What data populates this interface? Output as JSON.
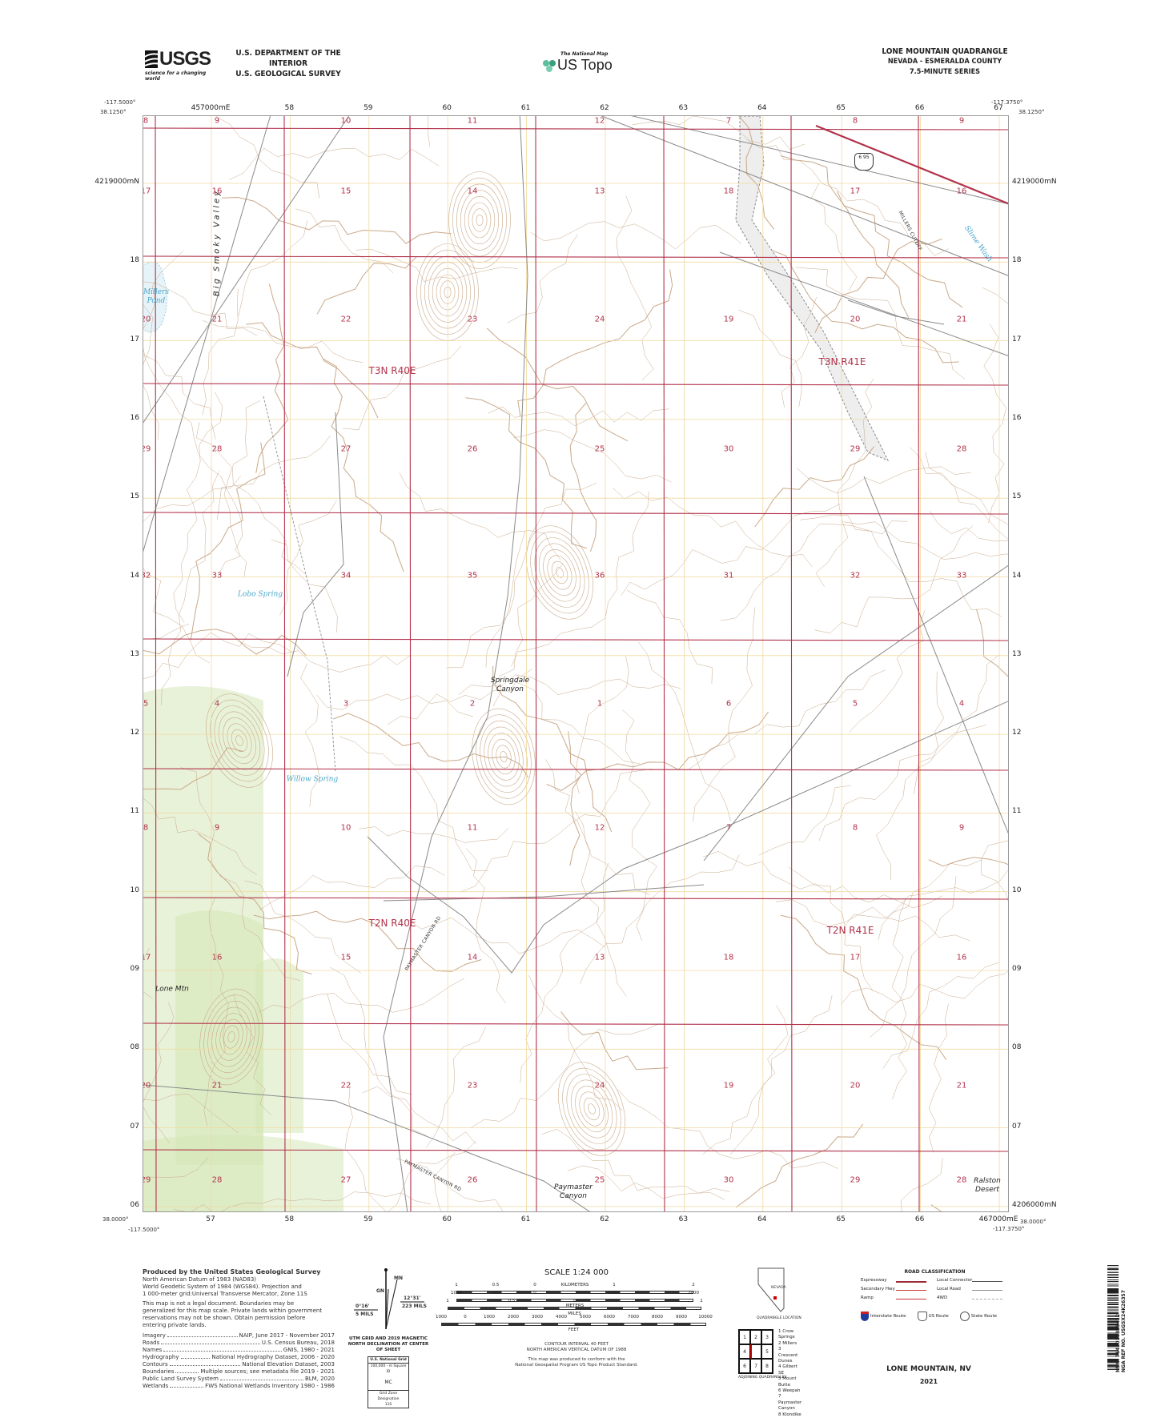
{
  "header": {
    "usgs_logo": "USGS",
    "usgs_tagline": "science for a changing world",
    "department": "U.S. DEPARTMENT OF THE INTERIOR",
    "survey": "U.S. GEOLOGICAL SURVEY",
    "national_map": "The National Map",
    "us_topo": "US Topo",
    "quad_title": "LONE MOUNTAIN QUADRANGLE",
    "state_county": "NEVADA - ESMERALDA COUNTY",
    "series": "7.5-MINUTE SERIES"
  },
  "corners": {
    "west_lon": "-117.5000°",
    "east_lon": "-117.3750°",
    "north_lat": "38.1250°",
    "south_lat": "38.0000°"
  },
  "grid": {
    "eastings": [
      "457000mE",
      "58",
      "59",
      "60",
      "61",
      "62",
      "63",
      "64",
      "65",
      "66",
      "67"
    ],
    "eastings_bottom": [
      "57",
      "58",
      "59",
      "60",
      "61",
      "62",
      "63",
      "64",
      "65",
      "66",
      "467000mE"
    ],
    "northings": [
      "4219000mN",
      "18",
      "17",
      "16",
      "15",
      "14",
      "13",
      "12",
      "11",
      "10",
      "09",
      "08",
      "07",
      "4206000mN"
    ],
    "northings_left": [
      "19",
      "18",
      "17",
      "16",
      "15",
      "14",
      "13",
      "12",
      "11",
      "10",
      "09",
      "08",
      "07",
      "06"
    ]
  },
  "sections": [
    [
      "8",
      "9",
      "10",
      "11",
      "12",
      "7",
      "8",
      "9"
    ],
    [
      "17",
      "16",
      "15",
      "14",
      "13",
      "18",
      "17",
      "16"
    ],
    [
      "20",
      "21",
      "22",
      "23",
      "24",
      "19",
      "20",
      "21"
    ],
    [
      "29",
      "28",
      "27",
      "26",
      "25",
      "30",
      "29",
      "28"
    ],
    [
      "32",
      "33",
      "34",
      "35",
      "36",
      "31",
      "32",
      "33"
    ],
    [
      "5",
      "4",
      "3",
      "2",
      "1",
      "6",
      "5",
      "4"
    ],
    [
      "8",
      "9",
      "10",
      "11",
      "12",
      "7",
      "8",
      "9"
    ],
    [
      "17",
      "16",
      "15",
      "14",
      "13",
      "18",
      "17",
      "16"
    ],
    [
      "20",
      "21",
      "22",
      "23",
      "24",
      "19",
      "20",
      "21"
    ],
    [
      "29",
      "28",
      "27",
      "26",
      "25",
      "30",
      "29",
      "28"
    ]
  ],
  "townships": [
    "T3N R40E",
    "T3N R41E",
    "T2N R40E",
    "T2N R41E"
  ],
  "places": {
    "millers_pond": "Millers Pond",
    "big_smoky_valley": "Big Smoky Valley",
    "lobo_spring": "Lobo Spring",
    "willow_spring": "Willow Spring",
    "springdale_canyon": "Springdale Canyon",
    "lone_mtn": "Lone Mtn",
    "paymaster_canyon": "Paymaster Canyon",
    "ralston_desert": "Ralston Desert",
    "slime_wash": "Slime Wash"
  },
  "roads": {
    "millers_cutoff": "MILLERS CUTOFF",
    "paymaster_rd": "PAYMASTER CANYON RD",
    "us_route_shield": "6 95"
  },
  "colors": {
    "section_line": "#b2324b",
    "utm_grid": "#f0d9a0",
    "contour": "#c9a98a",
    "vegetation": "#d5e7b8",
    "road": "#8a8a8a",
    "water": "#4aa6c8",
    "expressway": "#b2324b"
  },
  "footer": {
    "produced_by": "Produced by the United States Geological Survey",
    "datum_lines": [
      "North American Datum of 1983 (NAD83)",
      "World Geodetic System of 1984 (WGS84).  Projection and",
      "1 000-meter grid:Universal Transverse Mercator, Zone 11S"
    ],
    "disclaimer": [
      "This map is not a legal document. Boundaries may be",
      "generalized for this map scale. Private lands within government",
      "reservations may not be shown. Obtain permission before",
      "entering private lands."
    ],
    "sources": [
      [
        "Imagery",
        "NAIP, June 2017 - November 2017"
      ],
      [
        "Roads",
        "U.S. Census Bureau, 2018"
      ],
      [
        "Names",
        "GNIS, 1980 - 2021"
      ],
      [
        "Hydrography",
        "National Hydrography Dataset, 2006 - 2020"
      ],
      [
        "Contours",
        "National Elevation Dataset, 2003"
      ],
      [
        "Boundaries",
        "Multiple sources; see metadata file 2019 - 2021"
      ],
      [
        "Public Land Survey System",
        "BLM, 2020"
      ],
      [
        "Wetlands",
        "FWS National Wetlands Inventory 1980 - 1986"
      ]
    ],
    "declination": {
      "mn": "MN",
      "gn": "GN",
      "grid_angle": "0°16'",
      "grid_mils": "5 MILS",
      "mag_angle": "12°31'",
      "mag_mils": "223 MILS",
      "caption": "UTM GRID AND 2019 MAGNETIC NORTH DECLINATION AT CENTER OF SHEET"
    },
    "national_grid": {
      "title": "U.S. National Grid",
      "square_label": "100,000 - m Square ID",
      "square_id": "MC",
      "zone_label": "Grid Zone Designation",
      "zone": "11S"
    },
    "scale": {
      "title": "SCALE 1:24 000",
      "km_ticks": [
        "1",
        "0.5",
        "0",
        "1",
        "2"
      ],
      "km_label": "KILOMETERS",
      "m_ticks": [
        "1000",
        "500",
        "0",
        "1000",
        "2000"
      ],
      "m_label": "METERS",
      "mi_ticks": [
        "1",
        "0.5",
        "0",
        "1"
      ],
      "mi_label": "MILES",
      "ft_ticks": [
        "1000",
        "0",
        "1000",
        "2000",
        "3000",
        "4000",
        "5000",
        "6000",
        "7000",
        "8000",
        "9000",
        "10000"
      ],
      "ft_label": "FEET"
    },
    "contour_interval": "CONTOUR INTERVAL 40 FEET",
    "vertical_datum": "NORTH AMERICAN VERTICAL DATUM OF 1988",
    "standard": [
      "This map was produced to conform with the",
      "National Geospatial Program US Topo Product Standard."
    ],
    "location": {
      "state": "NEVADA",
      "caption": "QUADRANGLE LOCATION"
    },
    "adjoining": {
      "cells": [
        "1",
        "2",
        "3",
        "4",
        "",
        "5",
        "6",
        "7",
        "8"
      ],
      "caption": "ADJOINING QUADRANGLES",
      "names": [
        "1 Crow Springs",
        "2 Millers",
        "3 Crescent Dunes",
        "4 Gilbert SE",
        "5 Mount Butte",
        "6 Weepah",
        "7 Paymaster Canyon",
        "8 Klondike"
      ]
    },
    "road_class": {
      "title": "ROAD CLASSIFICATION",
      "items": [
        "Expressway",
        "Secondary Hwy",
        "Ramp",
        "Local Connector",
        "Local Road",
        "4WD"
      ],
      "routes": [
        "Interstate Route",
        "US Route",
        "State Route"
      ]
    },
    "sheet_name": "LONE MOUNTAIN,  NV",
    "year": "2021",
    "nsn": "NSN. 7643016385412",
    "nga_ref": "NGA REF NO. USGSX24K26357"
  }
}
